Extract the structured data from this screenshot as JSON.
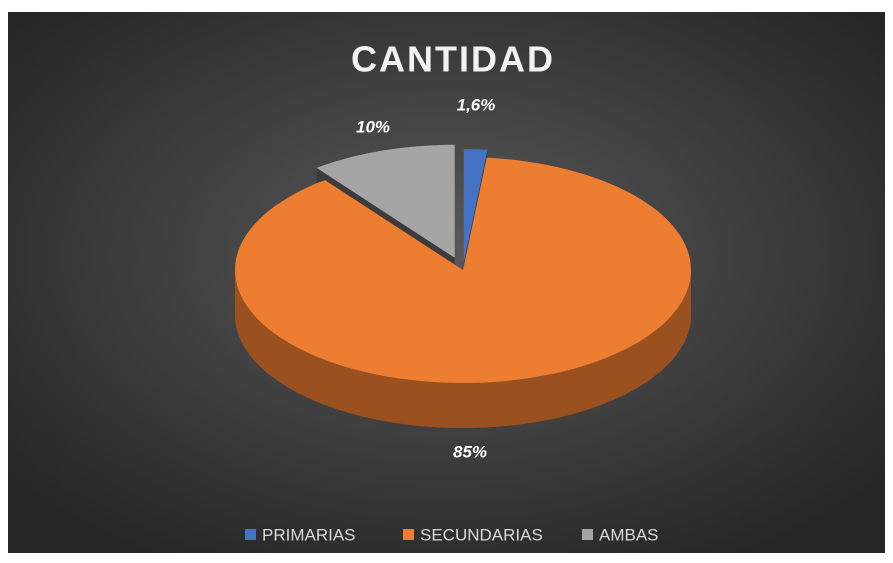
{
  "chart_data": {
    "type": "pie",
    "title": "CANTIDAD",
    "categories": [
      "PRIMARIAS",
      "SECUNDARIAS",
      "AMBAS"
    ],
    "values": [
      1.6,
      85,
      10
    ],
    "value_labels": [
      "1,6%",
      "85%",
      "10%"
    ],
    "colors": [
      "#4472c4",
      "#ed7d31",
      "#a5a5a5"
    ],
    "legend": "bottom"
  }
}
